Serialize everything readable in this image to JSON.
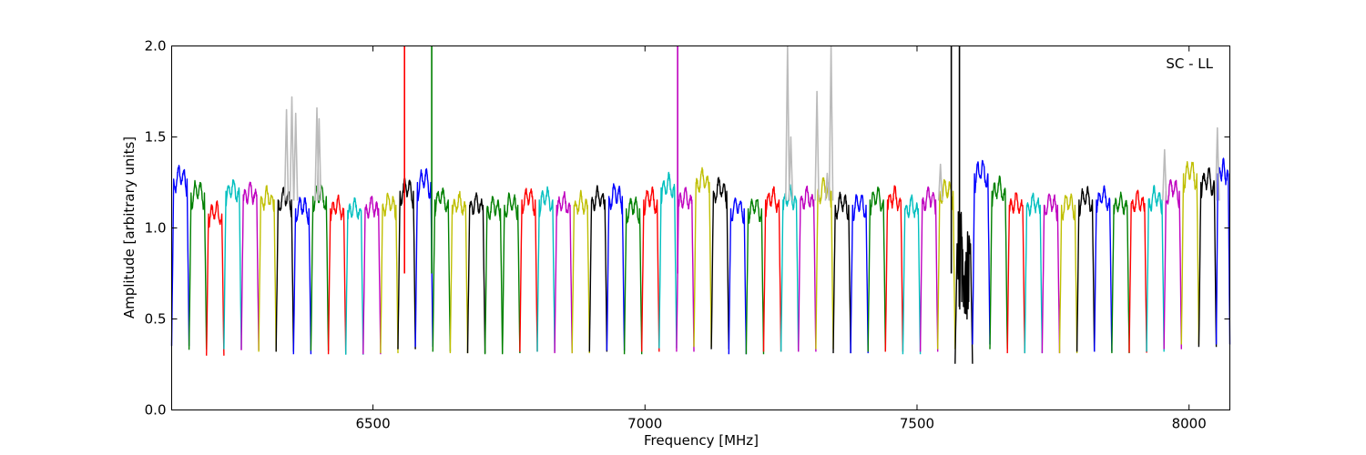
{
  "chart_data": {
    "type": "line",
    "title": "",
    "annotation": "SC - LL",
    "xlabel": "Frequency [MHz]",
    "ylabel": "Amplitude [arbitrary units]",
    "xlim": [
      6130,
      8075
    ],
    "ylim": [
      0.0,
      2.0
    ],
    "xticks": [
      6500,
      7000,
      7500,
      8000
    ],
    "xtick_labels": [
      "6500",
      "7000",
      "7500",
      "8000"
    ],
    "yticks": [
      0.0,
      0.5,
      1.0,
      1.5,
      2.0
    ],
    "ytick_labels": [
      "0.0",
      "0.5",
      "1.0",
      "1.5",
      "2.0"
    ],
    "grid": false,
    "colors": {
      "blue": "#0000ff",
      "green": "#008000",
      "red": "#ff0000",
      "cyan": "#00bfbf",
      "magenta": "#bf00bf",
      "yellow": "#bfbf00",
      "black": "#000000",
      "gray": "#bbbbbb"
    },
    "channel_width_mhz": 32,
    "channels": [
      {
        "start": 6130,
        "color": "blue",
        "level": 1.32
      },
      {
        "start": 6162,
        "color": "green",
        "level": 1.24
      },
      {
        "start": 6194,
        "color": "red",
        "level": 1.12
      },
      {
        "start": 6226,
        "color": "cyan",
        "level": 1.25
      },
      {
        "start": 6258,
        "color": "magenta",
        "level": 1.23
      },
      {
        "start": 6290,
        "color": "yellow",
        "level": 1.2
      },
      {
        "start": 6322,
        "color": "black",
        "level": 1.2
      },
      {
        "start": 6354,
        "color": "blue",
        "level": 1.15
      },
      {
        "start": 6386,
        "color": "green",
        "level": 1.22
      },
      {
        "start": 6418,
        "color": "red",
        "level": 1.15
      },
      {
        "start": 6450,
        "color": "cyan",
        "level": 1.14
      },
      {
        "start": 6482,
        "color": "magenta",
        "level": 1.15
      },
      {
        "start": 6514,
        "color": "yellow",
        "level": 1.17
      },
      {
        "start": 6546,
        "color": "black",
        "level": 1.25
      },
      {
        "start": 6578,
        "color": "blue",
        "level": 1.3
      },
      {
        "start": 6610,
        "color": "green",
        "level": 1.2
      },
      {
        "start": 6642,
        "color": "yellow",
        "level": 1.17
      },
      {
        "start": 6674,
        "color": "black",
        "level": 1.17
      },
      {
        "start": 6706,
        "color": "green",
        "level": 1.15
      },
      {
        "start": 6738,
        "color": "green",
        "level": 1.17
      },
      {
        "start": 6770,
        "color": "red",
        "level": 1.2
      },
      {
        "start": 6802,
        "color": "cyan",
        "level": 1.2
      },
      {
        "start": 6834,
        "color": "magenta",
        "level": 1.17
      },
      {
        "start": 6866,
        "color": "yellow",
        "level": 1.17
      },
      {
        "start": 6898,
        "color": "black",
        "level": 1.2
      },
      {
        "start": 6930,
        "color": "blue",
        "level": 1.22
      },
      {
        "start": 6962,
        "color": "green",
        "level": 1.15
      },
      {
        "start": 6994,
        "color": "red",
        "level": 1.2
      },
      {
        "start": 7026,
        "color": "cyan",
        "level": 1.27
      },
      {
        "start": 7058,
        "color": "magenta",
        "level": 1.2
      },
      {
        "start": 7090,
        "color": "yellow",
        "level": 1.3
      },
      {
        "start": 7122,
        "color": "black",
        "level": 1.25
      },
      {
        "start": 7154,
        "color": "blue",
        "level": 1.15
      },
      {
        "start": 7186,
        "color": "green",
        "level": 1.15
      },
      {
        "start": 7218,
        "color": "red",
        "level": 1.2
      },
      {
        "start": 7250,
        "color": "cyan",
        "level": 1.2
      },
      {
        "start": 7282,
        "color": "magenta",
        "level": 1.2
      },
      {
        "start": 7314,
        "color": "yellow",
        "level": 1.25
      },
      {
        "start": 7346,
        "color": "black",
        "level": 1.17
      },
      {
        "start": 7378,
        "color": "blue",
        "level": 1.17
      },
      {
        "start": 7410,
        "color": "green",
        "level": 1.2
      },
      {
        "start": 7442,
        "color": "red",
        "level": 1.2
      },
      {
        "start": 7474,
        "color": "cyan",
        "level": 1.15
      },
      {
        "start": 7506,
        "color": "magenta",
        "level": 1.2
      },
      {
        "start": 7538,
        "color": "yellow",
        "level": 1.25
      },
      {
        "start": 7570,
        "color": "black",
        "level": 0.95
      },
      {
        "start": 7602,
        "color": "blue",
        "level": 1.35
      },
      {
        "start": 7634,
        "color": "green",
        "level": 1.25
      },
      {
        "start": 7666,
        "color": "red",
        "level": 1.17
      },
      {
        "start": 7698,
        "color": "cyan",
        "level": 1.17
      },
      {
        "start": 7730,
        "color": "magenta",
        "level": 1.17
      },
      {
        "start": 7762,
        "color": "yellow",
        "level": 1.17
      },
      {
        "start": 7794,
        "color": "black",
        "level": 1.2
      },
      {
        "start": 7826,
        "color": "blue",
        "level": 1.2
      },
      {
        "start": 7858,
        "color": "green",
        "level": 1.17
      },
      {
        "start": 7890,
        "color": "red",
        "level": 1.18
      },
      {
        "start": 7922,
        "color": "cyan",
        "level": 1.2
      },
      {
        "start": 7954,
        "color": "magenta",
        "level": 1.25
      },
      {
        "start": 7986,
        "color": "yellow",
        "level": 1.35
      },
      {
        "start": 8018,
        "color": "black",
        "level": 1.3
      },
      {
        "start": 8050,
        "color": "blue",
        "level": 1.35
      }
    ],
    "spikes": [
      {
        "x": 6558,
        "color": "red",
        "y": 2.0
      },
      {
        "x": 6608,
        "color": "green",
        "y": 2.0
      },
      {
        "x": 7060,
        "color": "magenta",
        "y": 2.0
      },
      {
        "x": 7563,
        "color": "black",
        "y": 2.0
      },
      {
        "x": 7578,
        "color": "black",
        "y": 2.0
      }
    ],
    "gray_peaks": [
      {
        "x": 6341,
        "y": 1.65
      },
      {
        "x": 6351,
        "y": 1.72
      },
      {
        "x": 6358,
        "y": 1.63
      },
      {
        "x": 6397,
        "y": 1.66
      },
      {
        "x": 6401,
        "y": 1.6
      },
      {
        "x": 7262,
        "y": 2.0
      },
      {
        "x": 7268,
        "y": 1.5
      },
      {
        "x": 7316,
        "y": 1.75
      },
      {
        "x": 7342,
        "y": 2.0
      },
      {
        "x": 7335,
        "y": 1.3
      },
      {
        "x": 7543,
        "y": 1.35
      },
      {
        "x": 7955,
        "y": 1.43
      },
      {
        "x": 8052,
        "y": 1.55
      }
    ]
  }
}
